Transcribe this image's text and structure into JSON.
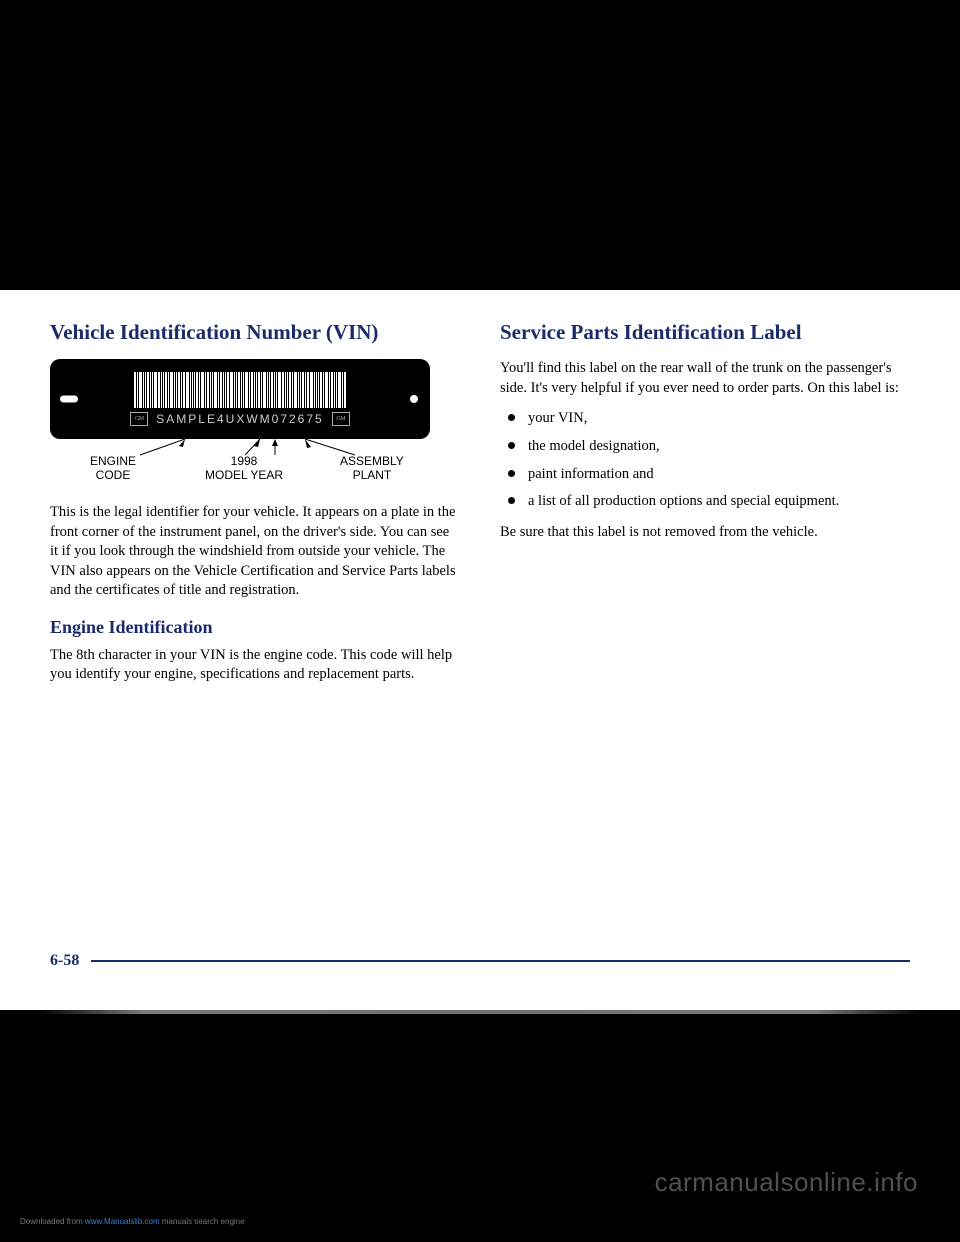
{
  "leftColumn": {
    "heading": "Vehicle Identification Number (VIN)",
    "vinPlate": {
      "text": "SAMPLE4UXWM072675",
      "barcodeWidths": [
        2,
        1,
        3,
        1,
        1,
        2,
        1,
        1,
        3,
        2,
        1,
        1,
        2,
        1,
        3,
        1,
        1,
        2,
        1,
        2,
        3,
        1,
        1,
        1,
        2,
        1,
        3,
        1,
        2,
        1,
        1,
        3,
        1,
        2,
        1,
        1,
        2,
        3,
        1,
        1,
        2,
        1,
        1,
        3,
        1,
        2,
        1,
        1,
        2,
        1,
        3,
        1,
        1,
        2,
        1,
        1,
        3,
        2,
        1,
        1,
        2,
        1,
        3,
        1,
        1,
        2,
        1,
        2,
        3,
        1,
        1,
        1,
        2,
        1,
        3,
        1,
        2,
        1,
        1,
        3,
        1,
        2
      ],
      "callouts": {
        "engine": "ENGINE\nCODE",
        "year": "1998\nMODEL YEAR",
        "plant": "ASSEMBLY\nPLANT"
      }
    },
    "para1": "This is the legal identifier for your vehicle. It appears on a plate in the front corner of the instrument panel, on the driver's side. You can see it if you look through the windshield from outside your vehicle. The VIN also appears on the Vehicle Certification and Service Parts labels and the certificates of title and registration.",
    "subheading": "Engine Identification",
    "para2": "The 8th character in your VIN is the engine code. This code will help you identify your engine, specifications and replacement parts."
  },
  "rightColumn": {
    "heading": "Service Parts Identification Label",
    "para1": "You'll find this label on the rear wall of the trunk on the passenger's side. It's very helpful if you ever need to order parts. On this label is:",
    "bullets": [
      "your VIN,",
      "the model designation,",
      "paint information and",
      "a list of all production options and special equipment."
    ],
    "para2": "Be sure that this label is not removed from the vehicle."
  },
  "pageNumber": "6-58",
  "watermark": "carmanualsonline.info",
  "bottomNote": {
    "prefix": "Downloaded from ",
    "link": "www.Manualslib.com",
    "suffix": " manuals search engine"
  }
}
